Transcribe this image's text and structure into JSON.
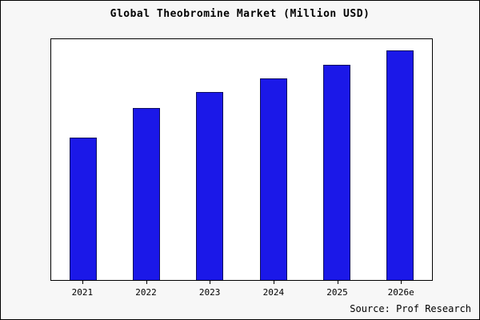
{
  "title": "Global Theobromine Market (Million USD)",
  "source": "Source: Prof Research",
  "colors": {
    "bar_fill": "#1b18e8",
    "bar_border": "#10105e",
    "background": "#f7f7f7",
    "plot_background": "#ffffff",
    "frame_border": "#000000"
  },
  "chart_data": {
    "type": "bar",
    "categories": [
      "2021",
      "2022",
      "2023",
      "2024",
      "2025",
      "2026e"
    ],
    "values": [
      62,
      75,
      82,
      88,
      94,
      100
    ],
    "title": "Global Theobromine Market (Million USD)",
    "xlabel": "",
    "ylabel": "",
    "ylim": [
      0,
      105
    ],
    "grid": false,
    "legend": false,
    "annotation": "Source: Prof Research"
  }
}
